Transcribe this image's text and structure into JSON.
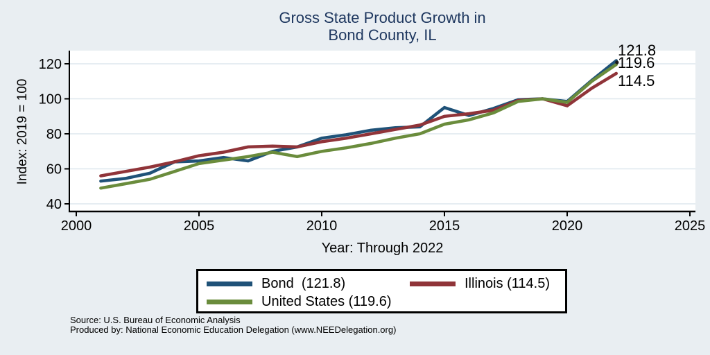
{
  "title": {
    "line1": "Gross State Product Growth in",
    "line2": "Bond County, IL",
    "color": "#1e375f"
  },
  "y_axis": {
    "title": "Index: 2019 = 100"
  },
  "x_axis": {
    "title": "Year: Through 2022"
  },
  "end_labels": {
    "first": "121.8",
    "second": "119.6",
    "third": "114.5"
  },
  "legend": {
    "items": [
      {
        "label": "Bond  (121.8)",
        "color": "#1f5278"
      },
      {
        "label": "Illinois (114.5)",
        "color": "#903439"
      },
      {
        "label": "United States (119.6)",
        "color": "#6a8c3c"
      }
    ]
  },
  "source": {
    "line1": "Source: U.S. Bureau of Economic Analysis",
    "line2": "Produced by: National Economic Education Delegation (www.NEEDelegation.org)"
  },
  "chart_data": {
    "type": "line",
    "title": "Gross State Product Growth in Bond County, IL",
    "xlabel": "Year: Through 2022",
    "ylabel": "Index: 2019 = 100",
    "xticks": [
      2000,
      2005,
      2010,
      2015,
      2020,
      2025
    ],
    "yticks": [
      40,
      60,
      80,
      100,
      120
    ],
    "xlim": [
      1999.7,
      2025.2
    ],
    "ylim": [
      33,
      128
    ],
    "grid": true,
    "legend_position": "bottom",
    "background": "#e9eef2",
    "plot_background": "#ffffff",
    "gridline_color": "#dee7ee",
    "x": [
      2001,
      2002,
      2003,
      2004,
      2005,
      2006,
      2007,
      2008,
      2009,
      2010,
      2011,
      2012,
      2013,
      2014,
      2015,
      2016,
      2017,
      2018,
      2019,
      2020,
      2021,
      2022
    ],
    "series": [
      {
        "name": "Bond",
        "color": "#1f5278",
        "final_value": 121.8,
        "values": [
          53,
          54.5,
          57.5,
          64,
          64.5,
          66.5,
          64.5,
          70,
          72.5,
          77.5,
          79.5,
          82,
          83.5,
          84,
          95,
          90.5,
          94.5,
          99.5,
          100,
          98.5,
          110.5,
          121.8
        ]
      },
      {
        "name": "Illinois",
        "color": "#903439",
        "final_value": 114.5,
        "values": [
          56,
          58.5,
          61,
          64,
          67.5,
          69.5,
          72.5,
          73,
          72.5,
          75.5,
          77.5,
          80,
          82.5,
          85,
          90,
          91.5,
          93.5,
          99,
          100,
          96,
          106,
          114.5
        ]
      },
      {
        "name": "United States",
        "color": "#6a8c3c",
        "final_value": 119.6,
        "values": [
          49,
          51.5,
          54,
          58.5,
          63,
          65,
          67,
          69.5,
          67,
          70,
          72,
          74.5,
          77.5,
          80,
          85.5,
          88,
          92,
          98.5,
          100,
          98,
          110,
          119.6
        ]
      }
    ]
  }
}
